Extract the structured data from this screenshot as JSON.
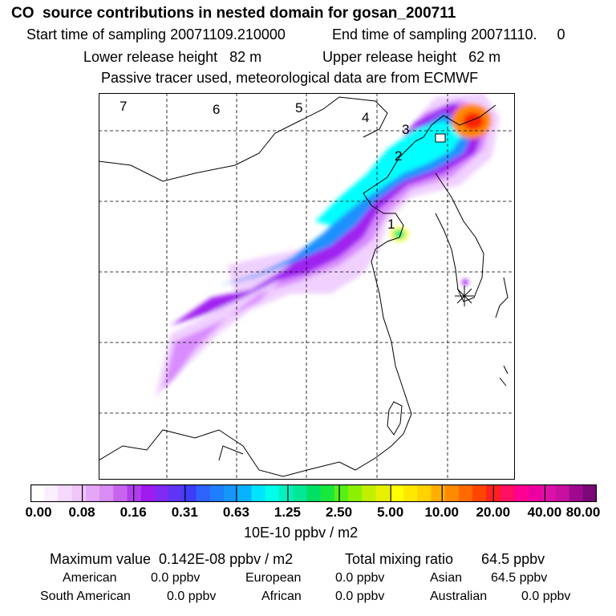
{
  "title": "CO  source contributions in nested domain for gosan_200711",
  "sampling": {
    "start": "Start time of sampling 20071109.210000",
    "end": "End time of sampling 20071110.     0"
  },
  "release": {
    "lower": "Lower release height   82 m",
    "upper": "Upper release height   62 m"
  },
  "info": "Passive tracer used, meteorological data are from ECMWF",
  "map": {
    "zone_labels": [
      "7",
      "6",
      "5",
      "4",
      "3",
      "2",
      "1"
    ],
    "receptor_symbol": "asterisk",
    "plume_colors": [
      "#f0d0ff",
      "#d98cff",
      "#a020f0",
      "#5a5aff",
      "#1e90ff",
      "#00ffff",
      "#00e88a",
      "#7cff00",
      "#ffff00",
      "#ff8800",
      "#ff2000"
    ]
  },
  "colorbar": {
    "colors": [
      "#ffffff",
      "#fbeefe",
      "#f4d9fb",
      "#eec6fa",
      "#e4a6f6",
      "#d98cf4",
      "#c964f0",
      "#b23cee",
      "#9e1aee",
      "#7f2af3",
      "#5d35f6",
      "#3d3df9",
      "#2f62fa",
      "#1f7efb",
      "#1596fb",
      "#08b2fb",
      "#00e5ff",
      "#00ffea",
      "#00f0c0",
      "#00e896",
      "#00e064",
      "#18e83c",
      "#56f014",
      "#8cf000",
      "#c0f000",
      "#e6f000",
      "#ffff00",
      "#ffe800",
      "#ffd200",
      "#ffae00",
      "#ff8a00",
      "#ff6a00",
      "#ff4600",
      "#ff2020",
      "#ff1060",
      "#ff0090",
      "#ee00a0",
      "#dd10a8",
      "#c810a0",
      "#a00890",
      "#7a0878"
    ],
    "tick_labels": [
      "0.00",
      "0.08",
      "0.16",
      "0.31",
      "0.63",
      "1.25",
      "2.50",
      "5.00",
      "10.00",
      "20.00",
      "40.00",
      "80.00"
    ],
    "units": "10E-10 ppbv / m2"
  },
  "summary": {
    "maximum": "Maximum value  0.142E-08 ppbv / m2",
    "total": "Total mixing ratio       64.5 ppbv",
    "regions": [
      {
        "name": "American",
        "value": "0.0 ppbv"
      },
      {
        "name": "European",
        "value": "0.0 ppbv"
      },
      {
        "name": "Asian",
        "value": "64.5 ppbv"
      },
      {
        "name": "South American",
        "value": "0.0 ppbv"
      },
      {
        "name": "African",
        "value": "0.0 ppbv"
      },
      {
        "name": "Australian",
        "value": "0.0 ppbv"
      }
    ]
  }
}
